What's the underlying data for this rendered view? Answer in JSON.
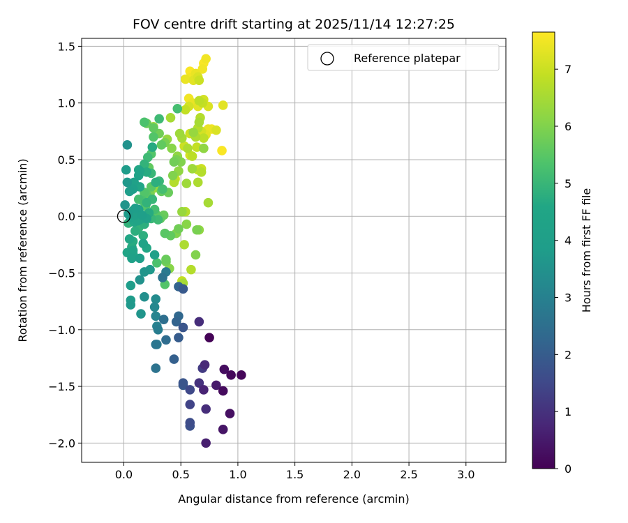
{
  "chart_data": {
    "type": "scatter",
    "title": "FOV centre drift starting at 2025/11/14 12:27:25",
    "xlabel": "Angular distance from reference (arcmin)",
    "ylabel": "Rotation from reference (arcmin)",
    "xlim": [
      -0.37,
      3.35
    ],
    "ylim": [
      -2.17,
      1.57
    ],
    "x_ticks": [
      0.0,
      0.5,
      1.0,
      1.5,
      2.0,
      2.5,
      3.0
    ],
    "x_tick_labels": [
      "0.0",
      "0.5",
      "1.0",
      "1.5",
      "2.0",
      "2.5",
      "3.0"
    ],
    "y_ticks": [
      -2.0,
      -1.5,
      -1.0,
      -0.5,
      0.0,
      0.5,
      1.0,
      1.5
    ],
    "y_tick_labels": [
      "−2.0",
      "−1.5",
      "−1.0",
      "−0.5",
      "0.0",
      "0.5",
      "1.0",
      "1.5"
    ],
    "grid": true,
    "legend": {
      "position": "top-right",
      "entries": [
        "Reference platepar"
      ]
    },
    "reference_point": {
      "x": 0.0,
      "y": 0.0
    },
    "colorbar": {
      "label": "Hours from first FF file",
      "colormap": "viridis",
      "range": [
        0,
        7.65
      ],
      "ticks": [
        0,
        1,
        2,
        3,
        4,
        5,
        6,
        7
      ],
      "tick_labels": [
        "0",
        "1",
        "2",
        "3",
        "4",
        "5",
        "6",
        "7"
      ]
    },
    "points": [
      {
        "x": 0.72,
        "y": -2.0,
        "h": 0.6
      },
      {
        "x": 0.87,
        "y": -1.88,
        "h": 0.4
      },
      {
        "x": 0.93,
        "y": -1.74,
        "h": 0.3
      },
      {
        "x": 0.72,
        "y": -1.7,
        "h": 0.9
      },
      {
        "x": 0.58,
        "y": -1.66,
        "h": 1.4
      },
      {
        "x": 0.58,
        "y": -1.82,
        "h": 1.6
      },
      {
        "x": 0.58,
        "y": -1.85,
        "h": 1.7
      },
      {
        "x": 0.87,
        "y": -1.54,
        "h": 0.2
      },
      {
        "x": 0.81,
        "y": -1.49,
        "h": 0.5
      },
      {
        "x": 0.7,
        "y": -1.53,
        "h": 0.7
      },
      {
        "x": 0.66,
        "y": -1.47,
        "h": 1.0
      },
      {
        "x": 0.58,
        "y": -1.53,
        "h": 1.5
      },
      {
        "x": 0.52,
        "y": -1.47,
        "h": 1.8
      },
      {
        "x": 0.52,
        "y": -1.49,
        "h": 1.9
      },
      {
        "x": 0.94,
        "y": -1.4,
        "h": 0.15
      },
      {
        "x": 1.03,
        "y": -1.4,
        "h": 0.1
      },
      {
        "x": 0.88,
        "y": -1.35,
        "h": 0.25
      },
      {
        "x": 0.71,
        "y": -1.31,
        "h": 0.8
      },
      {
        "x": 0.69,
        "y": -1.34,
        "h": 1.2
      },
      {
        "x": 0.44,
        "y": -1.26,
        "h": 2.1
      },
      {
        "x": 0.28,
        "y": -1.34,
        "h": 2.6
      },
      {
        "x": 0.75,
        "y": -1.07,
        "h": 0.05
      },
      {
        "x": 0.66,
        "y": -0.93,
        "h": 0.9
      },
      {
        "x": 0.52,
        "y": -0.98,
        "h": 1.8
      },
      {
        "x": 0.48,
        "y": -1.07,
        "h": 2.0
      },
      {
        "x": 0.37,
        "y": -1.09,
        "h": 2.4
      },
      {
        "x": 0.28,
        "y": -1.13,
        "h": 2.7
      },
      {
        "x": 0.29,
        "y": -1.13,
        "h": 2.8
      },
      {
        "x": 0.3,
        "y": -1.0,
        "h": 2.9
      },
      {
        "x": 0.29,
        "y": -0.97,
        "h": 3.0
      },
      {
        "x": 0.46,
        "y": -0.93,
        "h": 2.2
      },
      {
        "x": 0.35,
        "y": -0.91,
        "h": 2.5
      },
      {
        "x": 0.28,
        "y": -0.88,
        "h": 3.1
      },
      {
        "x": 0.48,
        "y": -0.88,
        "h": 2.3
      },
      {
        "x": 0.27,
        "y": -0.8,
        "h": 3.2
      },
      {
        "x": 0.28,
        "y": -0.73,
        "h": 3.3
      },
      {
        "x": 0.18,
        "y": -0.71,
        "h": 3.4
      },
      {
        "x": 0.15,
        "y": -0.86,
        "h": 3.6
      },
      {
        "x": 0.06,
        "y": -0.78,
        "h": 3.7
      },
      {
        "x": 0.06,
        "y": -0.74,
        "h": 3.8
      },
      {
        "x": 0.48,
        "y": -0.62,
        "h": 2.2
      },
      {
        "x": 0.52,
        "y": -0.64,
        "h": 1.9
      },
      {
        "x": 0.34,
        "y": -0.54,
        "h": 2.6
      },
      {
        "x": 0.37,
        "y": -0.49,
        "h": 2.8
      },
      {
        "x": 0.14,
        "y": -0.56,
        "h": 3.5
      },
      {
        "x": 0.06,
        "y": -0.61,
        "h": 3.9
      },
      {
        "x": 0.18,
        "y": -0.49,
        "h": 3.6
      },
      {
        "x": 0.23,
        "y": -0.47,
        "h": 3.7
      },
      {
        "x": 0.14,
        "y": -0.37,
        "h": 4.0
      },
      {
        "x": 0.07,
        "y": -0.37,
        "h": 4.2
      },
      {
        "x": 0.08,
        "y": -0.3,
        "h": 4.3
      },
      {
        "x": 0.03,
        "y": -0.32,
        "h": 4.4
      },
      {
        "x": 0.08,
        "y": -0.33,
        "h": 4.5
      },
      {
        "x": 0.05,
        "y": -0.2,
        "h": 4.6
      },
      {
        "x": 0.08,
        "y": -0.22,
        "h": 4.7
      },
      {
        "x": 0.17,
        "y": -0.24,
        "h": 4.3
      },
      {
        "x": 0.2,
        "y": -0.28,
        "h": 4.6
      },
      {
        "x": 0.27,
        "y": -0.34,
        "h": 4.1
      },
      {
        "x": 0.17,
        "y": -0.17,
        "h": 4.8
      },
      {
        "x": 0.13,
        "y": -0.1,
        "h": 4.9
      },
      {
        "x": 0.12,
        "y": -0.04,
        "h": 4.4
      },
      {
        "x": 0.14,
        "y": -0.03,
        "h": 4.5
      },
      {
        "x": 0.18,
        "y": -0.07,
        "h": 4.8
      },
      {
        "x": 0.2,
        "y": -0.02,
        "h": 4.2
      },
      {
        "x": 0.16,
        "y": 0.01,
        "h": 4.0
      },
      {
        "x": 0.1,
        "y": 0.01,
        "h": 4.1
      },
      {
        "x": 0.06,
        "y": -0.01,
        "h": 4.3
      },
      {
        "x": 0.09,
        "y": -0.05,
        "h": 4.6
      },
      {
        "x": 0.04,
        "y": 0.02,
        "h": 3.8
      },
      {
        "x": 0.01,
        "y": 0.1,
        "h": 3.6
      },
      {
        "x": 0.1,
        "y": 0.07,
        "h": 3.9
      },
      {
        "x": 0.13,
        "y": 0.06,
        "h": 4.2
      },
      {
        "x": 0.22,
        "y": 0.03,
        "h": 4.7
      },
      {
        "x": 0.24,
        "y": -0.02,
        "h": 5.0
      },
      {
        "x": 0.3,
        "y": -0.03,
        "h": 5.1
      },
      {
        "x": 0.27,
        "y": 0.06,
        "h": 5.2
      },
      {
        "x": 0.25,
        "y": 0.15,
        "h": 5.0
      },
      {
        "x": 0.2,
        "y": 0.12,
        "h": 4.9
      },
      {
        "x": 0.16,
        "y": 0.14,
        "h": 5.3
      },
      {
        "x": 0.18,
        "y": 0.21,
        "h": 5.4
      },
      {
        "x": 0.2,
        "y": 0.19,
        "h": 5.5
      },
      {
        "x": 0.14,
        "y": 0.26,
        "h": 4.5
      },
      {
        "x": 0.08,
        "y": 0.24,
        "h": 4.0
      },
      {
        "x": 0.05,
        "y": 0.22,
        "h": 3.9
      },
      {
        "x": 0.03,
        "y": 0.3,
        "h": 3.7
      },
      {
        "x": 0.09,
        "y": 0.3,
        "h": 4.2
      },
      {
        "x": 0.28,
        "y": 0.3,
        "h": 4.8
      },
      {
        "x": 0.31,
        "y": 0.31,
        "h": 5.0
      },
      {
        "x": 0.24,
        "y": 0.26,
        "h": 5.5
      },
      {
        "x": 0.33,
        "y": 0.22,
        "h": 5.6
      },
      {
        "x": 0.34,
        "y": 0.24,
        "h": 5.2
      },
      {
        "x": 0.39,
        "y": 0.21,
        "h": 5.7
      },
      {
        "x": 0.27,
        "y": 0.25,
        "h": 6.3
      },
      {
        "x": 0.44,
        "y": 0.3,
        "h": 6.7
      },
      {
        "x": 0.45,
        "y": 0.33,
        "h": 6.9
      },
      {
        "x": 0.43,
        "y": 0.36,
        "h": 6.0
      },
      {
        "x": 0.48,
        "y": 0.4,
        "h": 6.2
      },
      {
        "x": 0.2,
        "y": 0.39,
        "h": 4.7
      },
      {
        "x": 0.14,
        "y": 0.4,
        "h": 4.4
      },
      {
        "x": 0.13,
        "y": 0.36,
        "h": 4.3
      },
      {
        "x": 0.13,
        "y": 0.41,
        "h": 4.6
      },
      {
        "x": 0.24,
        "y": 0.38,
        "h": 5.0
      },
      {
        "x": 0.22,
        "y": 0.43,
        "h": 5.6
      },
      {
        "x": 0.18,
        "y": 0.46,
        "h": 4.9
      },
      {
        "x": 0.02,
        "y": 0.41,
        "h": 3.8
      },
      {
        "x": 0.03,
        "y": 0.63,
        "h": 3.5
      },
      {
        "x": 0.21,
        "y": 0.52,
        "h": 5.1
      },
      {
        "x": 0.24,
        "y": 0.55,
        "h": 5.4
      },
      {
        "x": 0.25,
        "y": 0.61,
        "h": 4.7
      },
      {
        "x": 0.33,
        "y": 0.63,
        "h": 5.6
      },
      {
        "x": 0.36,
        "y": 0.65,
        "h": 5.9
      },
      {
        "x": 0.42,
        "y": 0.6,
        "h": 6.1
      },
      {
        "x": 0.44,
        "y": 0.48,
        "h": 5.8
      },
      {
        "x": 0.46,
        "y": 0.5,
        "h": 5.9
      },
      {
        "x": 0.47,
        "y": 0.53,
        "h": 6.2
      },
      {
        "x": 0.5,
        "y": 0.48,
        "h": 6.0
      },
      {
        "x": 0.38,
        "y": 0.68,
        "h": 6.3
      },
      {
        "x": 0.26,
        "y": 0.7,
        "h": 5.4
      },
      {
        "x": 0.26,
        "y": 0.78,
        "h": 5.6
      },
      {
        "x": 0.31,
        "y": 0.73,
        "h": 5.8
      },
      {
        "x": 0.26,
        "y": 0.79,
        "h": 6.4
      },
      {
        "x": 0.18,
        "y": 0.83,
        "h": 5.3
      },
      {
        "x": 0.2,
        "y": 0.82,
        "h": 5.7
      },
      {
        "x": 0.31,
        "y": 0.86,
        "h": 5.1
      },
      {
        "x": 0.41,
        "y": 0.87,
        "h": 6.5
      },
      {
        "x": 0.47,
        "y": 0.95,
        "h": 5.2
      },
      {
        "x": 0.49,
        "y": 0.73,
        "h": 6.4
      },
      {
        "x": 0.51,
        "y": 0.69,
        "h": 6.5
      },
      {
        "x": 0.53,
        "y": 0.62,
        "h": 7.0
      },
      {
        "x": 0.56,
        "y": 0.6,
        "h": 6.6
      },
      {
        "x": 0.58,
        "y": 0.54,
        "h": 7.1
      },
      {
        "x": 0.6,
        "y": 0.53,
        "h": 6.8
      },
      {
        "x": 0.58,
        "y": 0.73,
        "h": 7.0
      },
      {
        "x": 0.61,
        "y": 0.74,
        "h": 6.3
      },
      {
        "x": 0.63,
        "y": 0.7,
        "h": 6.6
      },
      {
        "x": 0.64,
        "y": 0.61,
        "h": 6.9
      },
      {
        "x": 0.65,
        "y": 0.78,
        "h": 6.7
      },
      {
        "x": 0.68,
        "y": 0.75,
        "h": 7.1
      },
      {
        "x": 0.7,
        "y": 0.69,
        "h": 6.8
      },
      {
        "x": 0.7,
        "y": 0.6,
        "h": 6.2
      },
      {
        "x": 0.72,
        "y": 0.72,
        "h": 7.3
      },
      {
        "x": 0.74,
        "y": 0.77,
        "h": 7.4
      },
      {
        "x": 0.77,
        "y": 0.77,
        "h": 7.5
      },
      {
        "x": 0.81,
        "y": 0.76,
        "h": 7.2
      },
      {
        "x": 0.86,
        "y": 0.58,
        "h": 7.6
      },
      {
        "x": 0.6,
        "y": 0.42,
        "h": 6.4
      },
      {
        "x": 0.65,
        "y": 0.41,
        "h": 6.9
      },
      {
        "x": 0.68,
        "y": 0.42,
        "h": 7.0
      },
      {
        "x": 0.68,
        "y": 0.39,
        "h": 6.7
      },
      {
        "x": 0.65,
        "y": 0.3,
        "h": 6.6
      },
      {
        "x": 0.55,
        "y": 0.29,
        "h": 6.4
      },
      {
        "x": 0.54,
        "y": 0.04,
        "h": 6.7
      },
      {
        "x": 0.51,
        "y": 0.04,
        "h": 6.3
      },
      {
        "x": 0.74,
        "y": 0.12,
        "h": 6.5
      },
      {
        "x": 0.55,
        "y": -0.07,
        "h": 6.1
      },
      {
        "x": 0.48,
        "y": -0.11,
        "h": 5.8
      },
      {
        "x": 0.46,
        "y": -0.15,
        "h": 6.0
      },
      {
        "x": 0.36,
        "y": -0.15,
        "h": 5.5
      },
      {
        "x": 0.41,
        "y": -0.17,
        "h": 5.6
      },
      {
        "x": 0.53,
        "y": -0.25,
        "h": 6.6
      },
      {
        "x": 0.66,
        "y": -0.12,
        "h": 6.2
      },
      {
        "x": 0.64,
        "y": -0.12,
        "h": 5.9
      },
      {
        "x": 0.63,
        "y": -0.34,
        "h": 6.0
      },
      {
        "x": 0.59,
        "y": -0.47,
        "h": 6.7
      },
      {
        "x": 0.51,
        "y": -0.57,
        "h": 6.9
      },
      {
        "x": 0.52,
        "y": -0.59,
        "h": 6.5
      },
      {
        "x": 0.4,
        "y": -0.46,
        "h": 6.1
      },
      {
        "x": 0.37,
        "y": -0.4,
        "h": 5.8
      },
      {
        "x": 0.37,
        "y": -0.38,
        "h": 5.7
      },
      {
        "x": 0.29,
        "y": -0.41,
        "h": 5.3
      },
      {
        "x": 0.36,
        "y": -0.6,
        "h": 5.4
      },
      {
        "x": 0.28,
        "y": 0.02,
        "h": 5.5
      },
      {
        "x": 0.35,
        "y": 0.01,
        "h": 5.7
      },
      {
        "x": 0.32,
        "y": -0.02,
        "h": 5.6
      },
      {
        "x": 0.19,
        "y": 0.09,
        "h": 5.4
      },
      {
        "x": 0.21,
        "y": 0.16,
        "h": 5.8
      },
      {
        "x": 0.23,
        "y": 0.2,
        "h": 5.9
      },
      {
        "x": 0.13,
        "y": 0.15,
        "h": 5.2
      },
      {
        "x": 0.08,
        "y": 0.05,
        "h": 4.6
      },
      {
        "x": 0.04,
        "y": -0.06,
        "h": 4.9
      },
      {
        "x": 0.1,
        "y": -0.13,
        "h": 4.8
      },
      {
        "x": 0.07,
        "y": -0.27,
        "h": 4.7
      },
      {
        "x": 0.12,
        "y": -0.08,
        "h": 4.9
      },
      {
        "x": 0.66,
        "y": 1.02,
        "h": 6.8
      },
      {
        "x": 0.7,
        "y": 1.03,
        "h": 7.1
      },
      {
        "x": 0.74,
        "y": 0.97,
        "h": 7.2
      },
      {
        "x": 0.69,
        "y": 1.0,
        "h": 6.9
      },
      {
        "x": 0.65,
        "y": 0.97,
        "h": 7.3
      },
      {
        "x": 0.6,
        "y": 1.0,
        "h": 7.4
      },
      {
        "x": 0.57,
        "y": 0.97,
        "h": 7.1
      },
      {
        "x": 0.57,
        "y": 1.04,
        "h": 7.5
      },
      {
        "x": 0.54,
        "y": 0.94,
        "h": 6.9
      },
      {
        "x": 0.67,
        "y": 0.87,
        "h": 6.7
      },
      {
        "x": 0.66,
        "y": 0.83,
        "h": 6.5
      },
      {
        "x": 0.87,
        "y": 0.98,
        "h": 7.3
      },
      {
        "x": 0.54,
        "y": 1.21,
        "h": 7.4
      },
      {
        "x": 0.58,
        "y": 1.22,
        "h": 7.5
      },
      {
        "x": 0.58,
        "y": 1.28,
        "h": 7.6
      },
      {
        "x": 0.61,
        "y": 1.2,
        "h": 7.3
      },
      {
        "x": 0.63,
        "y": 1.26,
        "h": 7.4
      },
      {
        "x": 0.65,
        "y": 1.23,
        "h": 7.2
      },
      {
        "x": 0.69,
        "y": 1.3,
        "h": 7.5
      },
      {
        "x": 0.7,
        "y": 1.35,
        "h": 7.6
      },
      {
        "x": 0.72,
        "y": 1.39,
        "h": 7.5
      },
      {
        "x": 0.66,
        "y": 1.2,
        "h": 7.0
      },
      {
        "x": 0.62,
        "y": 1.24,
        "h": 7.6
      }
    ]
  }
}
